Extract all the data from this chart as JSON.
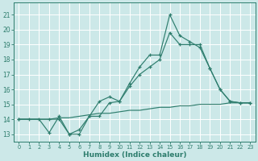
{
  "xlabel": "Humidex (Indice chaleur)",
  "xlim": [
    -0.5,
    23.5
  ],
  "ylim": [
    12.5,
    21.8
  ],
  "yticks": [
    13,
    14,
    15,
    16,
    17,
    18,
    19,
    20,
    21
  ],
  "xticks": [
    0,
    1,
    2,
    3,
    4,
    5,
    6,
    7,
    8,
    9,
    10,
    11,
    12,
    13,
    14,
    15,
    16,
    17,
    18,
    19,
    20,
    21,
    22,
    23
  ],
  "bg_color": "#cce8e8",
  "grid_color": "#ffffff",
  "line_color": "#2e7d6d",
  "line1_x": [
    0,
    1,
    2,
    3,
    4,
    5,
    6,
    7,
    8,
    9,
    10,
    11,
    12,
    13,
    14,
    15,
    16,
    17,
    18,
    19,
    20,
    21,
    22,
    23
  ],
  "line1_y": [
    14,
    14,
    14,
    13.1,
    14.2,
    13.0,
    13.0,
    14.2,
    14.2,
    15.1,
    15.2,
    16.4,
    17.5,
    18.3,
    18.3,
    21.0,
    19.6,
    19.2,
    18.8,
    17.4,
    16.0,
    15.2,
    15.1,
    15.1
  ],
  "line2_x": [
    0,
    3,
    4,
    5,
    6,
    7,
    8,
    9,
    10,
    11,
    12,
    13,
    14,
    15,
    16,
    17,
    18,
    19,
    20,
    21,
    22,
    23
  ],
  "line2_y": [
    14,
    14,
    14,
    13.0,
    13.3,
    14.2,
    15.2,
    15.5,
    15.2,
    16.2,
    17.0,
    17.5,
    18.0,
    19.8,
    19.0,
    19.0,
    19.0,
    17.4,
    16.0,
    15.2,
    15.1,
    15.1
  ],
  "line3_x": [
    0,
    1,
    2,
    3,
    4,
    5,
    6,
    7,
    8,
    9,
    10,
    11,
    12,
    13,
    14,
    15,
    16,
    17,
    18,
    19,
    20,
    21,
    22,
    23
  ],
  "line3_y": [
    14.0,
    14.0,
    14.0,
    14.0,
    14.1,
    14.1,
    14.2,
    14.3,
    14.4,
    14.4,
    14.5,
    14.6,
    14.6,
    14.7,
    14.8,
    14.8,
    14.9,
    14.9,
    15.0,
    15.0,
    15.0,
    15.1,
    15.1,
    15.1
  ],
  "tick_fontsize": 5.5,
  "xlabel_fontsize": 6.5
}
